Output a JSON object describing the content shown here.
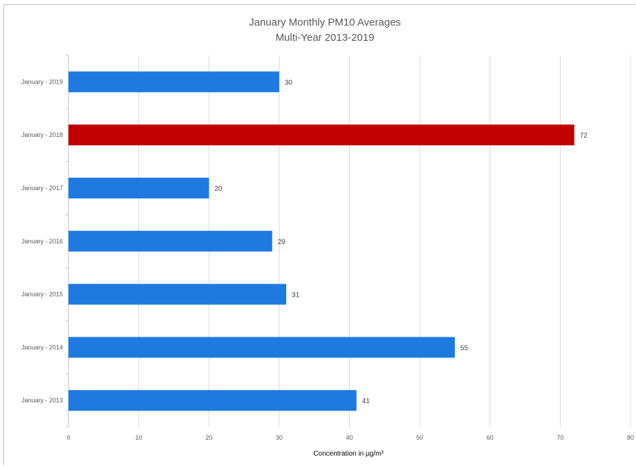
{
  "chart_data": {
    "type": "bar",
    "orientation": "horizontal",
    "title": "January Monthly PM10 Averages",
    "subtitle": "Multi-Year 2013-2019",
    "xlabel": "Concentration in µg/m³",
    "ylabel": "",
    "xlim": [
      0,
      80
    ],
    "xticks": [
      0,
      10,
      20,
      30,
      40,
      50,
      60,
      70,
      80
    ],
    "grid": true,
    "legend": "none",
    "categories": [
      "January - 2013",
      "January - 2014",
      "January - 2015",
      "January - 2016",
      "January - 2017",
      "January - 2018",
      "January - 2019"
    ],
    "values": [
      41,
      55,
      31,
      29,
      20,
      72,
      30
    ],
    "colors": [
      "#1f7ae0",
      "#1f7ae0",
      "#1f7ae0",
      "#1f7ae0",
      "#1f7ae0",
      "#c00000",
      "#1f7ae0"
    ],
    "gridline_color": "#d9d9d9"
  }
}
